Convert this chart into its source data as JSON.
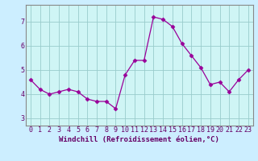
{
  "x": [
    0,
    1,
    2,
    3,
    4,
    5,
    6,
    7,
    8,
    9,
    10,
    11,
    12,
    13,
    14,
    15,
    16,
    17,
    18,
    19,
    20,
    21,
    22,
    23
  ],
  "y": [
    4.6,
    4.2,
    4.0,
    4.1,
    4.2,
    4.1,
    3.8,
    3.7,
    3.7,
    3.4,
    4.8,
    5.4,
    5.4,
    7.2,
    7.1,
    6.8,
    6.1,
    5.6,
    5.1,
    4.4,
    4.5,
    4.1,
    4.6,
    5.0
  ],
  "line_color": "#990099",
  "marker": "D",
  "marker_size": 2.5,
  "bg_color": "#cceeff",
  "plot_bg_color": "#cff5f5",
  "axis_bar_color": "#660066",
  "grid_color": "#99cccc",
  "xlabel": "Windchill (Refroidissement éolien,°C)",
  "xlabel_fontsize": 6.5,
  "tick_fontsize": 6.0,
  "ylim": [
    2.7,
    7.7
  ],
  "yticks": [
    3,
    4,
    5,
    6,
    7
  ],
  "xticks": [
    0,
    1,
    2,
    3,
    4,
    5,
    6,
    7,
    8,
    9,
    10,
    11,
    12,
    13,
    14,
    15,
    16,
    17,
    18,
    19,
    20,
    21,
    22,
    23
  ],
  "xtick_labels": [
    "0",
    "1",
    "2",
    "3",
    "4",
    "5",
    "6",
    "7",
    "8",
    "9",
    "10",
    "11",
    "12",
    "13",
    "14",
    "15",
    "16",
    "17",
    "18",
    "19",
    "20",
    "21",
    "22",
    "23"
  ]
}
